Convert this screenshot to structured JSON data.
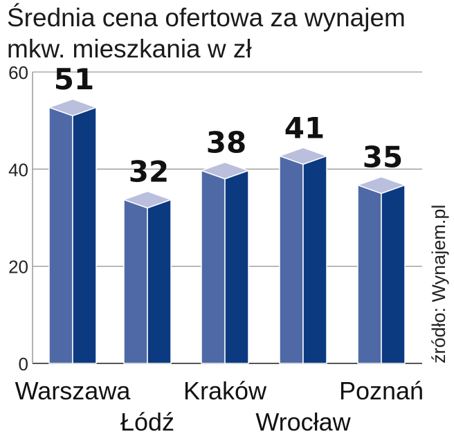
{
  "chart_data": {
    "type": "bar",
    "title": "Średnia cena ofertowa za wynajem",
    "subtitle": "mkw. mieszkania w zł",
    "categories": [
      "Warszawa",
      "Łódź",
      "Kraków",
      "Wrocław",
      "Poznań"
    ],
    "values": [
      51,
      32,
      38,
      41,
      35
    ],
    "value_labels": [
      "51",
      "32",
      "38",
      "41",
      "35"
    ],
    "yticks": [
      "0",
      "20",
      "40",
      "60"
    ],
    "ylim": [
      0,
      60
    ],
    "grid": true,
    "source": "źródło: Wynajem.pl",
    "colors": {
      "front": "#4e69a6",
      "side": "#0c3a80",
      "top": "#b9bfdc",
      "outline": "#ffffff"
    }
  }
}
